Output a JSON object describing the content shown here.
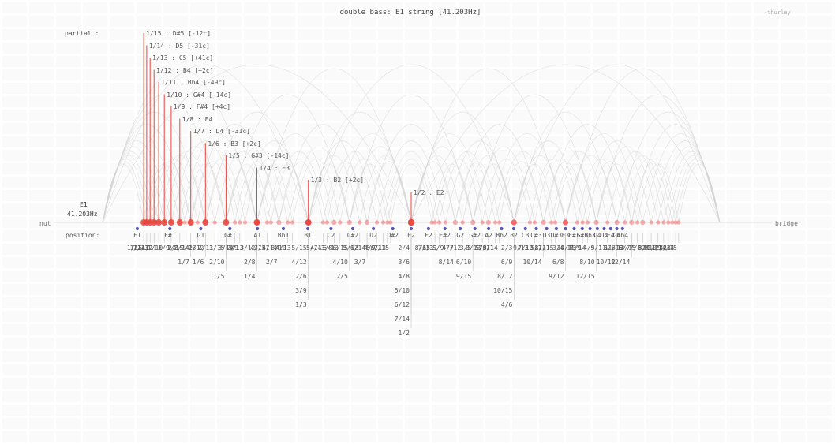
{
  "header": {
    "title": "double bass: E1 string [41.203Hz]",
    "credit": "-thurley"
  },
  "string": {
    "note": "E1",
    "frequency": "41.203Hz",
    "nut_label": "nut",
    "bridge_label": "bridge",
    "partial_prefix": "partial :",
    "position_prefix": "position:"
  },
  "colors": {
    "partial_line": "#e8453c",
    "partial_dot": "#f06060",
    "note_dot": "#5a5ab5",
    "ratio_line": "#c4c4c4",
    "arc": "#d4d4d4",
    "string_line": "#dddddd",
    "text": "#555555"
  },
  "partials": [
    {
      "ratio": "1/15",
      "label": "1/15 : D#5 [-12c]"
    },
    {
      "ratio": "1/14",
      "label": "1/14 : D5 [-31c]"
    },
    {
      "ratio": "1/13",
      "label": "1/13 : C5 [+41c]"
    },
    {
      "ratio": "1/12",
      "label": "1/12 : B4 [+2c]"
    },
    {
      "ratio": "1/11",
      "label": "1/11 : Bb4 [-49c]"
    },
    {
      "ratio": "1/10",
      "label": "1/10 : G#4 [-14c]"
    },
    {
      "ratio": "1/9",
      "label": "1/9 : F#4 [+4c]"
    },
    {
      "ratio": "1/8",
      "label": "1/8 : E4"
    },
    {
      "ratio": "1/7",
      "label": "1/7 : D4 [-31c]"
    },
    {
      "ratio": "1/6",
      "label": "1/6 : B3 [+2c]"
    },
    {
      "ratio": "1/5",
      "label": "1/5 : G#3 [-14c]"
    },
    {
      "ratio": "1/4",
      "label": "1/4 : E3"
    },
    {
      "ratio": "1/3",
      "label": "1/3 : B2 [+2c]"
    },
    {
      "ratio": "1/2",
      "label": "1/2 : E2"
    }
  ],
  "positions": [
    "F1",
    "F#1",
    "G1",
    "G#1",
    "A1",
    "Bb1",
    "B1",
    "C2",
    "C#2",
    "D2",
    "D#2",
    "E2",
    "F2",
    "F#2",
    "G2",
    "G#2",
    "A2",
    "Bb2",
    "B2",
    "C3",
    "C#3",
    "D3",
    "D#3",
    "E3",
    "F#3",
    "G#3",
    "Bb3",
    "C4",
    "D4",
    "E4",
    "G4",
    "Bb4"
  ],
  "ratios": [
    "1/15",
    "1/14",
    "1/13",
    "1/12",
    "2/15",
    "1/11",
    "2/14",
    "1/10",
    "2/13",
    "1/9",
    "2/12",
    "3/15",
    "1/8",
    "2/11",
    "3/14",
    "1/7",
    "2/10",
    "3/13",
    "4/15",
    "1/6",
    "2/9",
    "3/12",
    "4/14",
    "1/5",
    "2/8",
    "3/11",
    "4/13",
    "5/15",
    "2/7",
    "3/10",
    "4/12",
    "5/14",
    "1/4",
    "2/6",
    "3/9",
    "4/11",
    "5/13",
    "6/15",
    "3/8",
    "4/10",
    "5/12",
    "6/14",
    "2/5",
    "3/7",
    "4/9",
    "5/11",
    "6/13",
    "7/15",
    "1/3",
    "2/4",
    "3/6",
    "4/8",
    "5/10",
    "6/12",
    "7/14",
    "8/15",
    "1/2",
    "7/13",
    "6/11",
    "5/9",
    "4/7",
    "7/12",
    "3/5",
    "8/14",
    "6/10",
    "9/15",
    "5/8",
    "8/13",
    "7/11",
    "9/14",
    "2/3",
    "6/9",
    "8/12",
    "10/15",
    "4/6",
    "7/10",
    "9/13",
    "5/7",
    "10/14",
    "8/11",
    "11/15",
    "3/4",
    "6/8",
    "9/12",
    "7/9",
    "10/13",
    "11/14",
    "4/5",
    "8/10",
    "12/15",
    "5/6",
    "9/11",
    "10/12",
    "11/13",
    "6/7",
    "12/14",
    "7/8",
    "13/15",
    "8/9",
    "9/10",
    "10/11",
    "11/12",
    "12/13",
    "13/14",
    "14/15"
  ]
}
